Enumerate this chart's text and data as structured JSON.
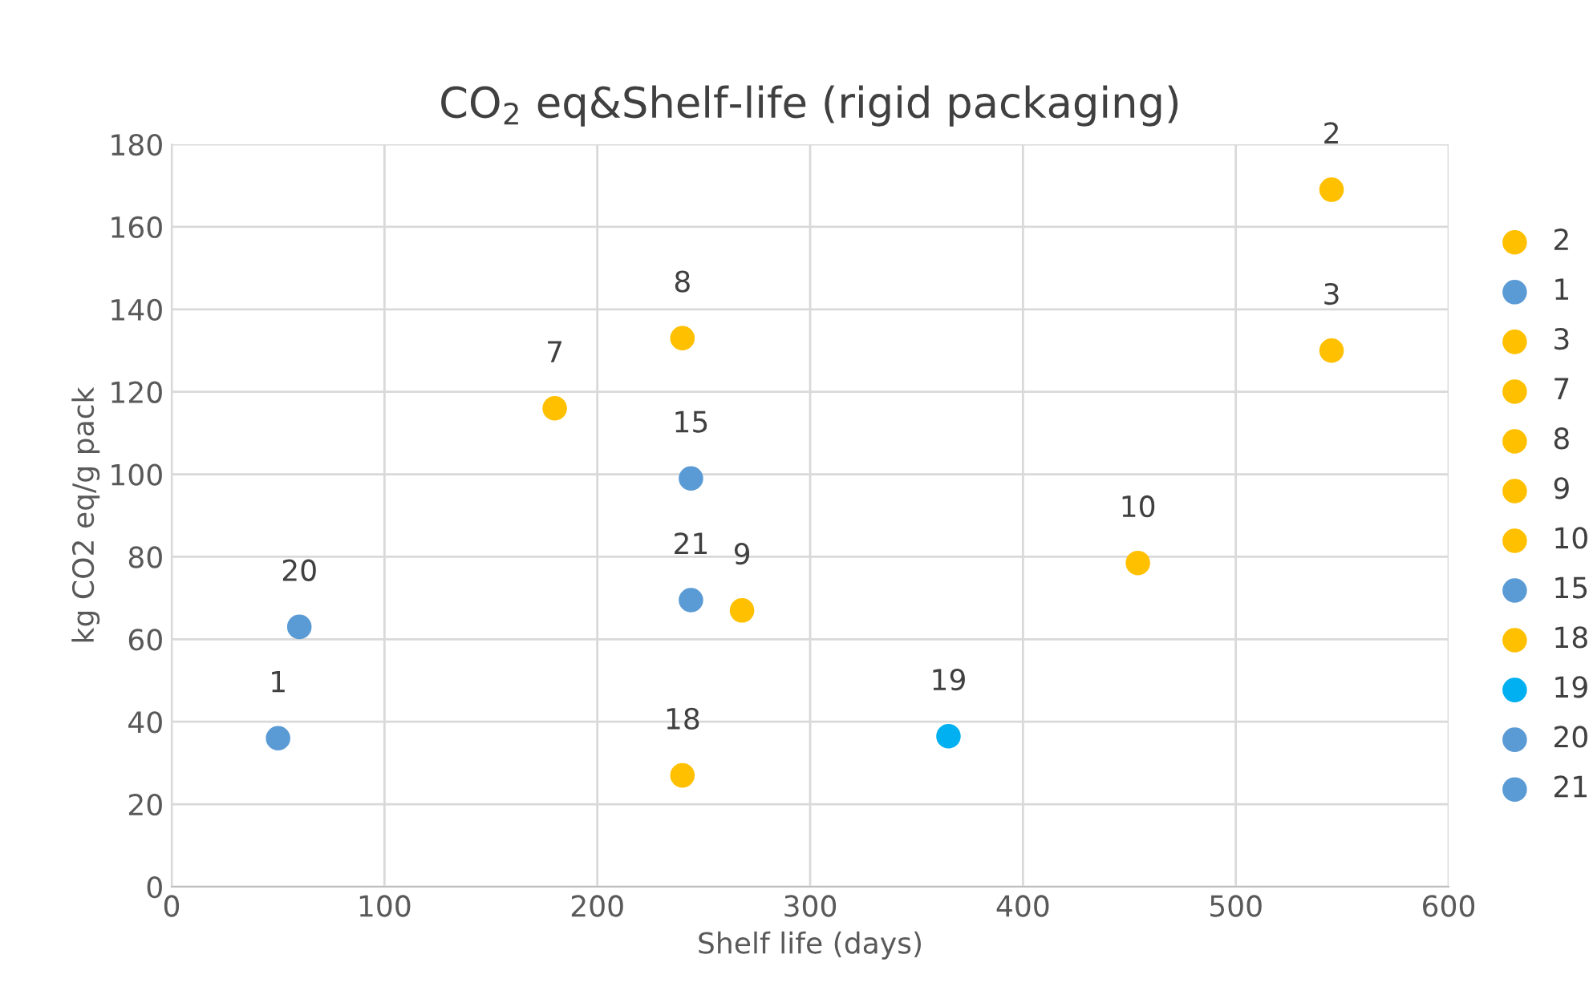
{
  "chart_data": {
    "type": "scatter",
    "title": "CO$_{2}$ eq&Shelf-life (rigid packaging)",
    "xlabel": "Shelf life (days)",
    "ylabel": "kg CO2 eq/g pack",
    "xlim": [
      0,
      600
    ],
    "xticks": [
      0,
      100,
      200,
      300,
      400,
      500,
      600
    ],
    "ylim": [
      0,
      180
    ],
    "yticks": [
      0,
      20,
      40,
      60,
      80,
      100,
      120,
      140,
      160,
      180
    ],
    "grid": true,
    "legend": "right",
    "marker": "circle",
    "series": [
      {
        "name": "2",
        "color": "#ffc000",
        "x": [
          545
        ],
        "values": [
          169
        ]
      },
      {
        "name": "1",
        "color": "#5b9bd5",
        "x": [
          50
        ],
        "values": [
          36
        ]
      },
      {
        "name": "3",
        "color": "#ffc000",
        "x": [
          545
        ],
        "values": [
          130
        ]
      },
      {
        "name": "7",
        "color": "#ffc000",
        "x": [
          180
        ],
        "values": [
          116
        ]
      },
      {
        "name": "8",
        "color": "#ffc000",
        "x": [
          240
        ],
        "values": [
          133
        ]
      },
      {
        "name": "9",
        "color": "#ffc000",
        "x": [
          268
        ],
        "values": [
          67
        ]
      },
      {
        "name": "10",
        "color": "#ffc000",
        "x": [
          454
        ],
        "values": [
          78.5
        ]
      },
      {
        "name": "15",
        "color": "#5b9bd5",
        "x": [
          244
        ],
        "values": [
          99
        ]
      },
      {
        "name": "18",
        "color": "#ffc000",
        "x": [
          240
        ],
        "values": [
          27
        ]
      },
      {
        "name": "19",
        "color": "#00b0f0",
        "x": [
          365
        ],
        "values": [
          36.5
        ]
      },
      {
        "name": "20",
        "color": "#5b9bd5",
        "x": [
          60
        ],
        "values": [
          63
        ]
      },
      {
        "name": "21",
        "color": "#5b9bd5",
        "x": [
          244
        ],
        "values": [
          69.5
        ]
      }
    ]
  }
}
